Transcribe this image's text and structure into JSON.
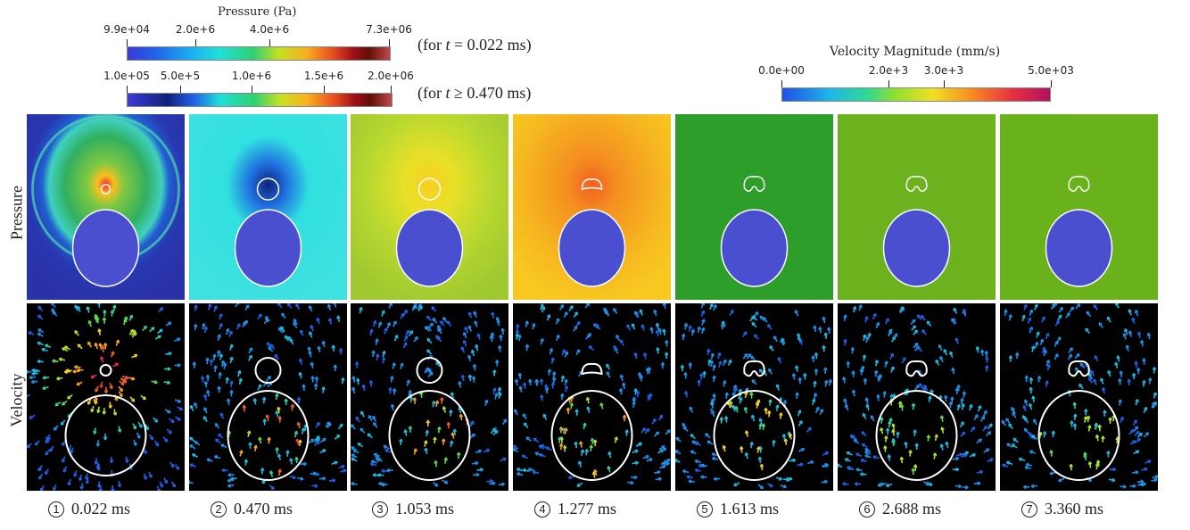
{
  "pressure_colorbar": {
    "title": "Pressure (Pa)",
    "ticks_early": [
      "9.9e+04",
      "2.0e+6",
      "4.0e+6",
      "7.3e+06"
    ],
    "ticks_late": [
      "1.0e+05",
      "5.0e+5",
      "1.0e+6",
      "1.5e+6",
      "2.0e+06"
    ],
    "note_early_prefix": "(for ",
    "note_early_t": "t",
    "note_early_suffix": " = 0.022 ms)",
    "note_late_prefix": "(for ",
    "note_late_t": "t",
    "note_late_suffix": " ≥ 0.470 ms)"
  },
  "velocity_colorbar": {
    "title": "Velocity Magnitude (mm/s)",
    "ticks": [
      "0.0e+00",
      "2.0e+3",
      "3.0e+3",
      "5.0e+03"
    ]
  },
  "row_labels": {
    "pressure": "Pressure",
    "velocity": "Velocity"
  },
  "frames": [
    {
      "num": "1",
      "time": "0.022 ms",
      "pressure_color": "#7fbf3f"
    },
    {
      "num": "2",
      "time": "0.470 ms",
      "pressure_color": "#3fe0e0"
    },
    {
      "num": "3",
      "time": "1.053 ms",
      "pressure_color": "#c8d830"
    },
    {
      "num": "4",
      "time": "1.277 ms",
      "pressure_color": "#f2b020"
    },
    {
      "num": "5",
      "time": "1.613 ms",
      "pressure_color": "#2e9e2a"
    },
    {
      "num": "6",
      "time": "2.688 ms",
      "pressure_color": "#6cb21e"
    },
    {
      "num": "7",
      "time": "3.360 ms",
      "pressure_color": "#6ab21c"
    }
  ],
  "colors": {
    "sphere": "#4a4fd0",
    "outline": "#ffffff",
    "velocity_bg": "#000000"
  }
}
